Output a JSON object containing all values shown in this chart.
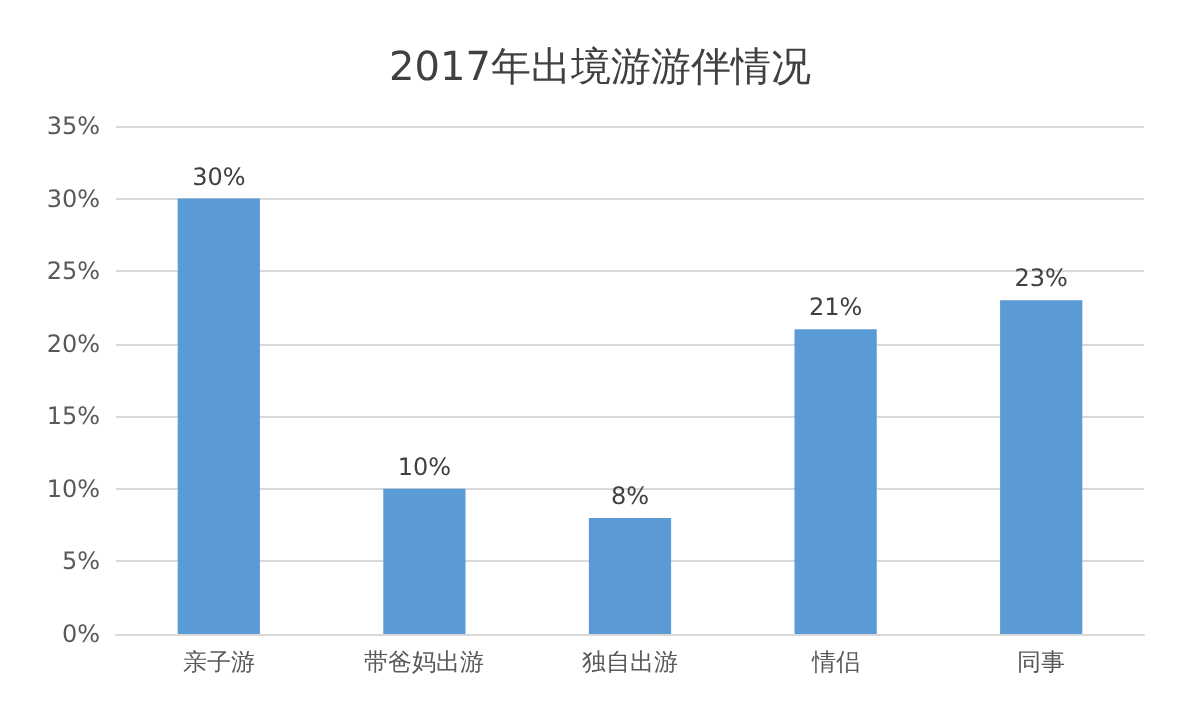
{
  "chart_data": {
    "type": "bar",
    "title": "2017年出境游游伴情况",
    "categories": [
      "亲子游",
      "带爸妈出游",
      "独自出游",
      "情侣",
      "同事"
    ],
    "values": [
      30,
      10,
      8,
      21,
      23
    ],
    "value_labels": [
      "30%",
      "10%",
      "8%",
      "21%",
      "23%"
    ],
    "color": "#5b9bd5",
    "ylim": [
      0,
      35
    ],
    "yticks": [
      {
        "value": 0,
        "label": "0%"
      },
      {
        "value": 5,
        "label": "5%"
      },
      {
        "value": 10,
        "label": "10%"
      },
      {
        "value": 15,
        "label": "15%"
      },
      {
        "value": 20,
        "label": "20%"
      },
      {
        "value": 25,
        "label": "25%"
      },
      {
        "value": 30,
        "label": "30%"
      },
      {
        "value": 35,
        "label": "35%"
      }
    ],
    "grid": "y"
  }
}
